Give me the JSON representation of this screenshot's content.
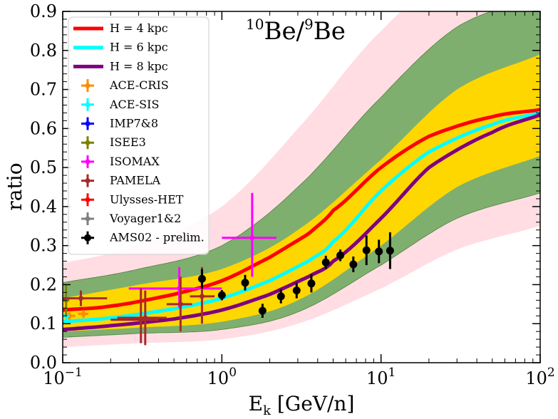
{
  "chart_data": {
    "type": "line",
    "title_main": "Be/",
    "title_main_tail": "Be",
    "title_sup1": "10",
    "title_sup2": "9",
    "xlabel_main": "E",
    "xlabel_sub": "k",
    "xlabel_tail": " [GeV/n]",
    "ylabel": "ratio",
    "xscale": "log",
    "xlim": [
      0.1,
      100
    ],
    "ylim": [
      0.0,
      0.9
    ],
    "legend_position": "top-left",
    "x_ticks": [
      {
        "value": 0.1,
        "base": "10",
        "exp": "−1"
      },
      {
        "value": 1,
        "base": "10",
        "exp": "0"
      },
      {
        "value": 10,
        "base": "10",
        "exp": "1"
      },
      {
        "value": 100,
        "base": "10",
        "exp": "2"
      }
    ],
    "y_ticks": [
      {
        "value": 0.0,
        "label": "0.0"
      },
      {
        "value": 0.1,
        "label": "0.1"
      },
      {
        "value": 0.2,
        "label": "0.2"
      },
      {
        "value": 0.3,
        "label": "0.3"
      },
      {
        "value": 0.4,
        "label": "0.4"
      },
      {
        "value": 0.5,
        "label": "0.5"
      },
      {
        "value": 0.6,
        "label": "0.6"
      },
      {
        "value": 0.7,
        "label": "0.7"
      },
      {
        "value": 0.8,
        "label": "0.8"
      },
      {
        "value": 0.9,
        "label": "0.9"
      }
    ],
    "bands": [
      {
        "name": "outer band",
        "color": "#ffdde3",
        "x": [
          0.1,
          0.3,
          1,
          3,
          10,
          30,
          100
        ],
        "low": [
          0.04,
          0.05,
          0.06,
          0.1,
          0.19,
          0.29,
          0.35
        ],
        "high": [
          0.255,
          0.3,
          0.4,
          0.6,
          0.85,
          1.0,
          1.0
        ]
      },
      {
        "name": "green band",
        "color": "#7faf6f",
        "x": [
          0.1,
          0.3,
          1,
          3,
          10,
          30,
          100
        ],
        "low": [
          0.065,
          0.075,
          0.085,
          0.13,
          0.25,
          0.37,
          0.435
        ],
        "high": [
          0.205,
          0.24,
          0.3,
          0.45,
          0.68,
          0.86,
          0.94
        ]
      },
      {
        "name": "yellow band",
        "color": "#ffd700",
        "x": [
          0.1,
          0.3,
          1,
          3,
          10,
          30,
          100
        ],
        "low": [
          0.08,
          0.09,
          0.105,
          0.16,
          0.3,
          0.45,
          0.53
        ],
        "high": [
          0.165,
          0.2,
          0.24,
          0.34,
          0.52,
          0.7,
          0.79
        ]
      }
    ],
    "series": [
      {
        "name": "H = 4 kpc",
        "color": "#ff0000",
        "x": [
          0.1,
          0.2,
          0.5,
          1,
          2,
          3.5,
          5,
          10,
          20,
          50,
          100
        ],
        "y": [
          0.135,
          0.145,
          0.175,
          0.21,
          0.27,
          0.33,
          0.39,
          0.5,
          0.58,
          0.63,
          0.648
        ]
      },
      {
        "name": "H = 6 kpc",
        "color": "#00ffff",
        "x": [
          0.1,
          0.2,
          0.5,
          1,
          2,
          3.5,
          5,
          10,
          20,
          50,
          100
        ],
        "y": [
          0.105,
          0.115,
          0.138,
          0.165,
          0.21,
          0.26,
          0.31,
          0.44,
          0.54,
          0.61,
          0.64
        ]
      },
      {
        "name": "H = 8 kpc",
        "color": "#800080",
        "x": [
          0.1,
          0.2,
          0.5,
          1,
          2,
          3.5,
          5,
          10,
          20,
          50,
          100
        ],
        "y": [
          0.085,
          0.095,
          0.112,
          0.135,
          0.175,
          0.22,
          0.26,
          0.37,
          0.5,
          0.59,
          0.635
        ]
      }
    ],
    "datasets": [
      {
        "name": "ACE-CRIS",
        "color": "#ff8c00",
        "marker": "cross",
        "points": [
          {
            "x": 0.11,
            "y": 0.12,
            "xerr": [
              0.1,
              0.12
            ],
            "yerr": [
              0.11,
              0.13
            ]
          },
          {
            "x": 0.135,
            "y": 0.125,
            "xerr": [
              0.125,
              0.145
            ],
            "yerr": [
              0.115,
              0.135
            ]
          }
        ]
      },
      {
        "name": "ACE-SIS",
        "color": "#00ffff",
        "marker": "cross",
        "points": [
          {
            "x": 0.105,
            "y": 0.12,
            "xerr": [
              0.1,
              0.11
            ],
            "yerr": [
              0.11,
              0.13
            ]
          }
        ]
      },
      {
        "name": "IMP7&8",
        "color": "#0000ff",
        "marker": "cross",
        "points": []
      },
      {
        "name": "ISEE3",
        "color": "#808000",
        "marker": "cross",
        "points": [
          {
            "x": 0.105,
            "y": 0.16,
            "xerr": [
              0.1,
              0.11
            ],
            "yerr": [
              0.12,
              0.2
            ]
          }
        ]
      },
      {
        "name": "ISOMAX",
        "color": "#ff00ff",
        "marker": "cross",
        "points": [
          {
            "x": 0.54,
            "y": 0.19,
            "xerr": [
              0.26,
              1.0
            ],
            "yerr": [
              0.14,
              0.245
            ]
          },
          {
            "x": 1.55,
            "y": 0.32,
            "xerr": [
              1.0,
              2.2
            ],
            "yerr": [
              0.22,
              0.435
            ]
          }
        ]
      },
      {
        "name": "PAMELA",
        "color": "#a52a2a",
        "marker": "cross",
        "points": [
          {
            "x": 0.13,
            "y": 0.165,
            "xerr": [
              0.1,
              0.19
            ],
            "yerr": [
              0.145,
              0.185
            ]
          },
          {
            "x": 0.31,
            "y": 0.11,
            "xerr": [
              0.2,
              0.4
            ],
            "yerr": [
              0.05,
              0.19
            ]
          },
          {
            "x": 0.33,
            "y": 0.115,
            "xerr": [
              0.22,
              0.45
            ],
            "yerr": [
              0.045,
              0.185
            ]
          },
          {
            "x": 0.55,
            "y": 0.15,
            "xerr": [
              0.45,
              0.65
            ],
            "yerr": [
              0.08,
              0.22
            ]
          },
          {
            "x": 0.75,
            "y": 0.17,
            "xerr": [
              0.63,
              0.9
            ],
            "yerr": [
              0.1,
              0.245
            ]
          }
        ]
      },
      {
        "name": "Ulysses-HET",
        "color": "#ff0000",
        "marker": "cross",
        "points": []
      },
      {
        "name": "Voyager1&2",
        "color": "#808080",
        "marker": "cross",
        "points": []
      },
      {
        "name": "AMS02 - prelim.",
        "color": "#000000",
        "marker": "circle",
        "points": [
          {
            "x": 0.75,
            "y": 0.215,
            "yerr": [
              0.19,
              0.24
            ]
          },
          {
            "x": 1.0,
            "y": 0.173,
            "yerr": [
              0.16,
              0.186
            ]
          },
          {
            "x": 1.4,
            "y": 0.205,
            "yerr": [
              0.185,
              0.225
            ]
          },
          {
            "x": 1.8,
            "y": 0.133,
            "yerr": [
              0.115,
              0.151
            ]
          },
          {
            "x": 2.35,
            "y": 0.17,
            "yerr": [
              0.152,
              0.188
            ]
          },
          {
            "x": 2.95,
            "y": 0.185,
            "yerr": [
              0.165,
              0.205
            ]
          },
          {
            "x": 3.65,
            "y": 0.203,
            "yerr": [
              0.18,
              0.226
            ]
          },
          {
            "x": 4.5,
            "y": 0.257,
            "yerr": [
              0.24,
              0.274
            ]
          },
          {
            "x": 5.55,
            "y": 0.275,
            "yerr": [
              0.26,
              0.29
            ]
          },
          {
            "x": 6.7,
            "y": 0.252,
            "yerr": [
              0.232,
              0.272
            ]
          },
          {
            "x": 8.1,
            "y": 0.288,
            "yerr": [
              0.25,
              0.326
            ]
          },
          {
            "x": 9.7,
            "y": 0.285,
            "yerr": [
              0.255,
              0.315
            ]
          },
          {
            "x": 11.4,
            "y": 0.287,
            "yerr": [
              0.24,
              0.334
            ]
          }
        ]
      }
    ]
  }
}
